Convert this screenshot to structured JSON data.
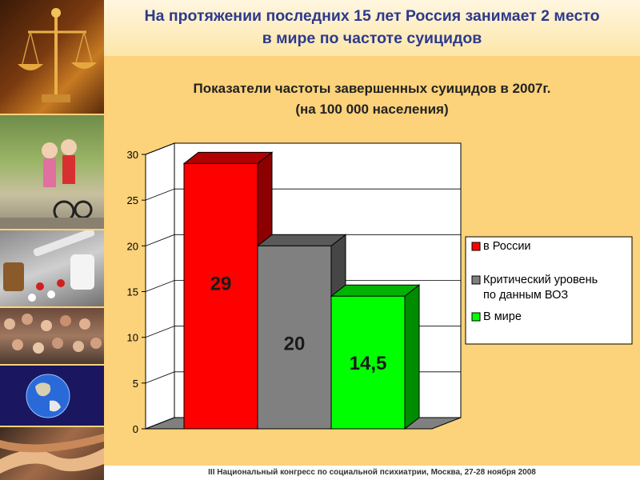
{
  "header": {
    "title_line1": "На протяжении последних 15 лет Россия занимает 2 место",
    "title_line2": "в мире по частоте суицидов"
  },
  "chart_title": {
    "line1": "Показатели частоты завершенных суицидов в 2007г.",
    "line2": "(на 100 000 населения)"
  },
  "chart_data": {
    "type": "bar",
    "ylim": [
      0,
      30
    ],
    "yticks": [
      "0",
      "5",
      "10",
      "15",
      "20",
      "25",
      "30"
    ],
    "grid": true,
    "legend_position": "right",
    "bars": [
      {
        "name": "в России",
        "value": 29,
        "label": "29",
        "color": "#FF0000"
      },
      {
        "name": "Критический уровень по данным ВОЗ",
        "value": 20,
        "label": "20",
        "color": "#808080"
      },
      {
        "name": "В мире",
        "value": 14.5,
        "label": "14,5",
        "color": "#00FF00"
      }
    ],
    "legend": [
      {
        "lines": [
          "в России"
        ],
        "color": "#FF0000"
      },
      {
        "lines": [
          "Критический уровень",
          "по данным ВОЗ"
        ],
        "color": "#808080"
      },
      {
        "lines": [
          "В мире"
        ],
        "color": "#00FF00"
      }
    ]
  },
  "footer": {
    "text": "III Национальный конгресс по социальной психиатрии, Москва, 27-28 ноября 2008"
  }
}
